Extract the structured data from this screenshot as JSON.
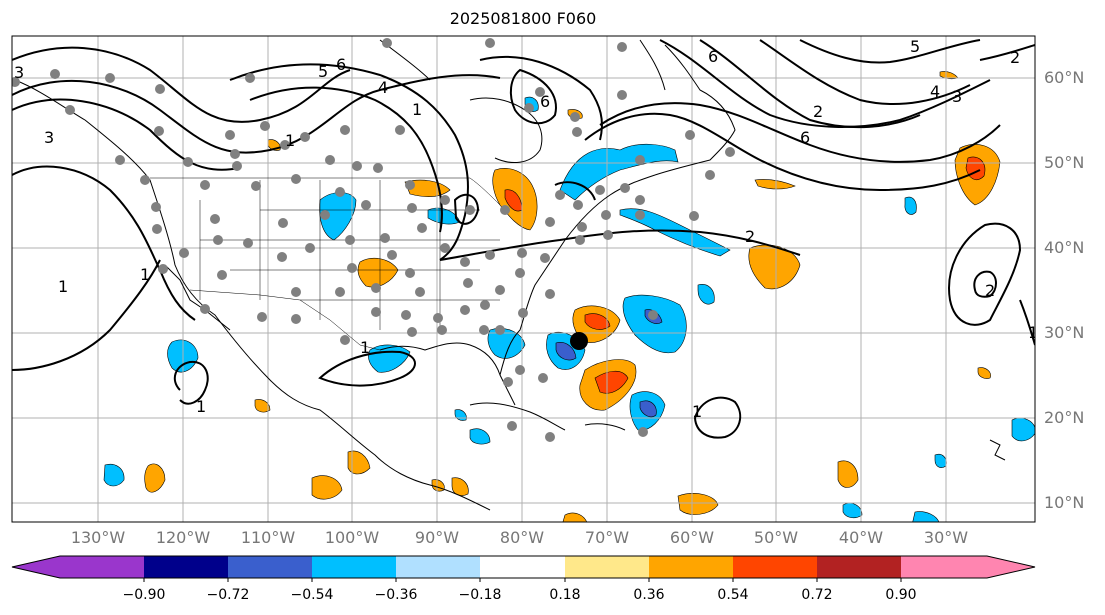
{
  "title": "2025081800 F060",
  "lon_labels": [
    "130°W",
    "120°W",
    "110°W",
    "100°W",
    "90°W",
    "80°W",
    "70°W",
    "60°W",
    "50°W",
    "40°W",
    "30°W"
  ],
  "lat_labels": [
    "60°N",
    "50°N",
    "40°N",
    "30°N",
    "20°N",
    "10°N"
  ],
  "colorbar": {
    "ticks": [
      "−0.90",
      "−0.72",
      "−0.54",
      "−0.36",
      "−0.18",
      "0.18",
      "0.36",
      "0.54",
      "0.72",
      "0.90"
    ],
    "colors": [
      "#9a36cc",
      "#00008b",
      "#3a5fcd",
      "#00bfff",
      "#b0e0ff",
      "#ffffff",
      "#ffe88a",
      "#ffa500",
      "#ff4500",
      "#b22222",
      "#ff85b0"
    ]
  },
  "contour_labels": [
    "1",
    "1",
    "1",
    "1",
    "1",
    "1",
    "1",
    "1",
    "2",
    "2",
    "2",
    "2",
    "3",
    "3",
    "3",
    "4",
    "4",
    "5",
    "5",
    "6",
    "6",
    "6",
    "6"
  ],
  "colors": {
    "contour": "#000000",
    "station": "#808080",
    "storm_center": "#000000",
    "grid": "#b0b0b0",
    "axis_text": "#777777"
  }
}
